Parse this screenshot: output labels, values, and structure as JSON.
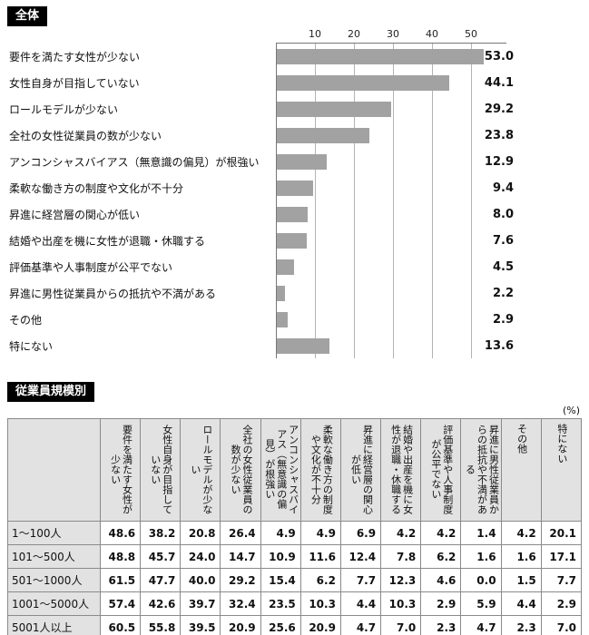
{
  "sections": {
    "overall_label": "全体",
    "by_size_label": "従業員規模別",
    "unit_label": "(%)"
  },
  "chart_data": [
    {
      "type": "bar",
      "orientation": "horizontal",
      "title": "全体",
      "categories": [
        "要件を満たす女性が少ない",
        "女性自身が目指していない",
        "ロールモデルが少ない",
        "全社の女性従業員の数が少ない",
        "アンコンシャスバイアス（無意識の偏見）が根強い",
        "柔軟な働き方の制度や文化が不十分",
        "昇進に経営層の関心が低い",
        "結婚や出産を機に女性が退職・休職する",
        "評価基準や人事制度が公平でない",
        "昇進に男性従業員からの抵抗や不満がある",
        "その他",
        "特にない"
      ],
      "values": [
        53.0,
        44.1,
        29.2,
        23.8,
        12.9,
        9.4,
        8.0,
        7.6,
        4.5,
        2.2,
        2.9,
        13.6
      ],
      "axis_ticks": [
        10,
        20,
        30,
        40,
        50
      ],
      "xlim": [
        0,
        55
      ],
      "unit": "%",
      "bar_color": "#a2a2a2",
      "grid": true,
      "legend": false
    },
    {
      "type": "table",
      "title": "従業員規模別",
      "unit": "(%)",
      "columns": [
        "要件を満たす女性が少ない",
        "女性自身が目指していない",
        "ロールモデルが少ない",
        "全社の女性従業員の数が少ない",
        "アンコンシャスバイアス（無意識の偏見）が根強い",
        "柔軟な働き方の制度や文化が不十分",
        "昇進に経営層の関心が低い",
        "結婚や出産を機に女性が退職・休職する",
        "評価基準や人事制度が公平でない",
        "昇進に男性従業員からの抵抗や不満がある",
        "その他",
        "特にない"
      ],
      "rows": [
        {
          "label": "1〜100人",
          "values": [
            "48.6",
            "38.2",
            "20.8",
            "26.4",
            "4.9",
            "4.9",
            "6.9",
            "4.2",
            "4.2",
            "1.4",
            "4.2",
            "20.1"
          ]
        },
        {
          "label": "101〜500人",
          "values": [
            "48.8",
            "45.7",
            "24.0",
            "14.7",
            "10.9",
            "11.6",
            "12.4",
            "7.8",
            "6.2",
            "1.6",
            "1.6",
            "17.1"
          ]
        },
        {
          "label": "501〜1000人",
          "values": [
            "61.5",
            "47.7",
            "40.0",
            "29.2",
            "15.4",
            "6.2",
            "7.7",
            "12.3",
            "4.6",
            "0.0",
            "1.5",
            "7.7"
          ]
        },
        {
          "label": "1001〜5000人",
          "values": [
            "57.4",
            "42.6",
            "39.7",
            "32.4",
            "23.5",
            "10.3",
            "4.4",
            "10.3",
            "2.9",
            "5.9",
            "4.4",
            "2.9"
          ]
        },
        {
          "label": "5001人以上",
          "values": [
            "60.5",
            "55.8",
            "39.5",
            "20.9",
            "25.6",
            "20.9",
            "4.7",
            "7.0",
            "2.3",
            "4.7",
            "2.3",
            "7.0"
          ]
        }
      ]
    }
  ]
}
